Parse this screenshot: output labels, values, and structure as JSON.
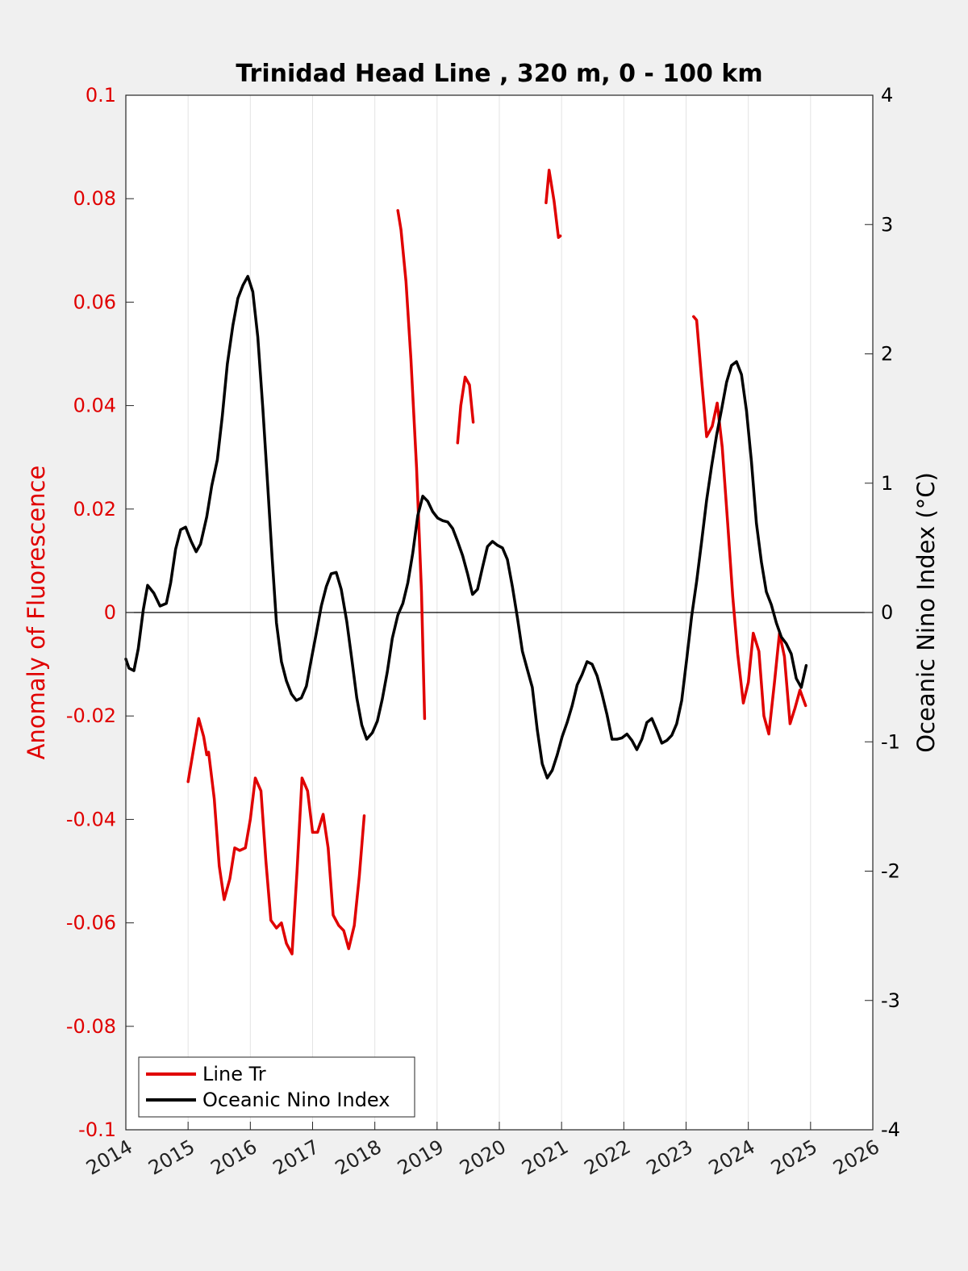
{
  "chart_data": {
    "type": "line",
    "title": "Trinidad Head Line , 320 m, 0 - 100 km",
    "xlabel": "",
    "xlim": [
      2014,
      2026
    ],
    "x_ticks": [
      "2014",
      "2015",
      "2016",
      "2017",
      "2018",
      "2019",
      "2020",
      "2021",
      "2022",
      "2023",
      "2024",
      "2025",
      "2026"
    ],
    "grid": "vertical",
    "legend_position": "bottom-left",
    "y_left": {
      "label": "Anomaly of Fluorescence",
      "ylim": [
        -0.1,
        0.1
      ],
      "ticks": [
        "0.1",
        "0.08",
        "0.06",
        "0.04",
        "0.02",
        "0",
        "-0.02",
        "-0.04",
        "-0.06",
        "-0.08",
        "-0.1"
      ],
      "color": "#e00000"
    },
    "y_right": {
      "label": "Oceanic Nino Index (°C)",
      "ylim": [
        -4,
        4
      ],
      "ticks": [
        "4",
        "3",
        "2",
        "1",
        "0",
        "-1",
        "-2",
        "-3",
        "-4"
      ],
      "color": "#000000"
    },
    "series": [
      {
        "name": "Line Tr",
        "axis": "left",
        "color": "#e00000",
        "segments": [
          [
            [
              2015.0,
              -0.0327
            ],
            [
              2015.08,
              -0.027
            ],
            [
              2015.17,
              -0.0205
            ],
            [
              2015.25,
              -0.024
            ],
            [
              2015.3,
              -0.0275
            ],
            [
              2015.33,
              -0.027
            ],
            [
              2015.42,
              -0.036
            ],
            [
              2015.5,
              -0.049
            ],
            [
              2015.58,
              -0.0555
            ],
            [
              2015.67,
              -0.0515
            ],
            [
              2015.75,
              -0.0455
            ],
            [
              2015.83,
              -0.046
            ],
            [
              2015.92,
              -0.0455
            ],
            [
              2016.0,
              -0.04
            ],
            [
              2016.08,
              -0.032
            ],
            [
              2016.17,
              -0.0345
            ],
            [
              2016.25,
              -0.048
            ],
            [
              2016.33,
              -0.0595
            ],
            [
              2016.42,
              -0.061
            ],
            [
              2016.5,
              -0.06
            ],
            [
              2016.58,
              -0.064
            ],
            [
              2016.67,
              -0.066
            ],
            [
              2016.75,
              -0.05
            ],
            [
              2016.83,
              -0.032
            ],
            [
              2016.92,
              -0.0345
            ],
            [
              2017.0,
              -0.0425
            ],
            [
              2017.08,
              -0.0425
            ],
            [
              2017.17,
              -0.039
            ],
            [
              2017.25,
              -0.0455
            ],
            [
              2017.33,
              -0.0585
            ],
            [
              2017.42,
              -0.0605
            ],
            [
              2017.5,
              -0.0615
            ],
            [
              2017.58,
              -0.065
            ],
            [
              2017.67,
              -0.0605
            ],
            [
              2017.75,
              -0.051
            ],
            [
              2017.83,
              -0.0393
            ]
          ],
          [
            [
              2018.37,
              0.0777
            ],
            [
              2018.42,
              0.074
            ],
            [
              2018.5,
              0.064
            ],
            [
              2018.58,
              0.049
            ],
            [
              2018.67,
              0.028
            ],
            [
              2018.75,
              0.004
            ],
            [
              2018.8,
              -0.0205
            ]
          ],
          [
            [
              2019.33,
              0.0328
            ],
            [
              2019.38,
              0.04
            ],
            [
              2019.45,
              0.0455
            ],
            [
              2019.52,
              0.044
            ],
            [
              2019.58,
              0.0368
            ]
          ],
          [
            [
              2020.75,
              0.0792
            ],
            [
              2020.8,
              0.0855
            ],
            [
              2020.88,
              0.0795
            ],
            [
              2020.95,
              0.0725
            ],
            [
              2020.98,
              0.0728
            ]
          ],
          [
            [
              2023.12,
              0.0572
            ],
            [
              2023.17,
              0.0565
            ],
            [
              2023.25,
              0.045
            ],
            [
              2023.33,
              0.034
            ],
            [
              2023.42,
              0.036
            ],
            [
              2023.5,
              0.0405
            ],
            [
              2023.58,
              0.032
            ],
            [
              2023.67,
              0.017
            ],
            [
              2023.75,
              0.003
            ],
            [
              2023.83,
              -0.008
            ],
            [
              2023.92,
              -0.0175
            ],
            [
              2024.0,
              -0.0135
            ],
            [
              2024.08,
              -0.004
            ],
            [
              2024.17,
              -0.0075
            ],
            [
              2024.25,
              -0.02
            ],
            [
              2024.33,
              -0.0235
            ],
            [
              2024.42,
              -0.0135
            ],
            [
              2024.5,
              -0.004
            ],
            [
              2024.58,
              -0.0085
            ],
            [
              2024.67,
              -0.0215
            ],
            [
              2024.75,
              -0.0185
            ],
            [
              2024.83,
              -0.015
            ],
            [
              2024.92,
              -0.018
            ]
          ]
        ]
      },
      {
        "name": "Oceanic Nino Index",
        "axis": "right",
        "color": "#000000",
        "segments": [
          [
            [
              2014.0,
              -0.36
            ],
            [
              2014.05,
              -0.43
            ],
            [
              2014.13,
              -0.45
            ],
            [
              2014.2,
              -0.28
            ],
            [
              2014.28,
              0.02
            ],
            [
              2014.35,
              0.21
            ],
            [
              2014.45,
              0.15
            ],
            [
              2014.55,
              0.05
            ],
            [
              2014.65,
              0.07
            ],
            [
              2014.72,
              0.23
            ],
            [
              2014.8,
              0.49
            ],
            [
              2014.88,
              0.64
            ],
            [
              2014.96,
              0.66
            ],
            [
              2015.05,
              0.55
            ],
            [
              2015.13,
              0.47
            ],
            [
              2015.2,
              0.53
            ],
            [
              2015.3,
              0.74
            ],
            [
              2015.38,
              0.98
            ],
            [
              2015.47,
              1.18
            ],
            [
              2015.55,
              1.52
            ],
            [
              2015.63,
              1.92
            ],
            [
              2015.72,
              2.22
            ],
            [
              2015.8,
              2.43
            ],
            [
              2015.88,
              2.53
            ],
            [
              2015.96,
              2.6
            ],
            [
              2016.04,
              2.48
            ],
            [
              2016.12,
              2.13
            ],
            [
              2016.2,
              1.58
            ],
            [
              2016.28,
              0.98
            ],
            [
              2016.35,
              0.43
            ],
            [
              2016.42,
              -0.08
            ],
            [
              2016.5,
              -0.38
            ],
            [
              2016.58,
              -0.53
            ],
            [
              2016.66,
              -0.63
            ],
            [
              2016.74,
              -0.68
            ],
            [
              2016.82,
              -0.66
            ],
            [
              2016.9,
              -0.57
            ],
            [
              2016.98,
              -0.36
            ],
            [
              2017.06,
              -0.16
            ],
            [
              2017.14,
              0.05
            ],
            [
              2017.22,
              0.2
            ],
            [
              2017.3,
              0.3
            ],
            [
              2017.38,
              0.31
            ],
            [
              2017.46,
              0.18
            ],
            [
              2017.55,
              -0.07
            ],
            [
              2017.63,
              -0.36
            ],
            [
              2017.71,
              -0.66
            ],
            [
              2017.79,
              -0.87
            ],
            [
              2017.87,
              -0.98
            ],
            [
              2017.96,
              -0.93
            ],
            [
              2018.04,
              -0.84
            ],
            [
              2018.12,
              -0.67
            ],
            [
              2018.2,
              -0.46
            ],
            [
              2018.28,
              -0.2
            ],
            [
              2018.37,
              -0.02
            ],
            [
              2018.45,
              0.07
            ],
            [
              2018.53,
              0.23
            ],
            [
              2018.61,
              0.46
            ],
            [
              2018.69,
              0.75
            ],
            [
              2018.77,
              0.9
            ],
            [
              2018.85,
              0.86
            ],
            [
              2018.93,
              0.78
            ],
            [
              2019.01,
              0.73
            ],
            [
              2019.09,
              0.71
            ],
            [
              2019.17,
              0.7
            ],
            [
              2019.25,
              0.65
            ],
            [
              2019.33,
              0.55
            ],
            [
              2019.41,
              0.44
            ],
            [
              2019.49,
              0.3
            ],
            [
              2019.57,
              0.14
            ],
            [
              2019.65,
              0.18
            ],
            [
              2019.73,
              0.35
            ],
            [
              2019.81,
              0.51
            ],
            [
              2019.89,
              0.55
            ],
            [
              2019.97,
              0.52
            ],
            [
              2020.05,
              0.5
            ],
            [
              2020.13,
              0.41
            ],
            [
              2020.21,
              0.2
            ],
            [
              2020.29,
              -0.04
            ],
            [
              2020.37,
              -0.3
            ],
            [
              2020.45,
              -0.44
            ],
            [
              2020.53,
              -0.58
            ],
            [
              2020.61,
              -0.91
            ],
            [
              2020.69,
              -1.17
            ],
            [
              2020.77,
              -1.28
            ],
            [
              2020.85,
              -1.22
            ],
            [
              2020.93,
              -1.1
            ],
            [
              2021.01,
              -0.96
            ],
            [
              2021.09,
              -0.85
            ],
            [
              2021.17,
              -0.72
            ],
            [
              2021.25,
              -0.56
            ],
            [
              2021.33,
              -0.48
            ],
            [
              2021.41,
              -0.38
            ],
            [
              2021.49,
              -0.4
            ],
            [
              2021.57,
              -0.49
            ],
            [
              2021.65,
              -0.63
            ],
            [
              2021.73,
              -0.79
            ],
            [
              2021.81,
              -0.98
            ],
            [
              2021.89,
              -0.98
            ],
            [
              2021.97,
              -0.97
            ],
            [
              2022.05,
              -0.94
            ],
            [
              2022.13,
              -0.99
            ],
            [
              2022.21,
              -1.06
            ],
            [
              2022.29,
              -0.98
            ],
            [
              2022.37,
              -0.85
            ],
            [
              2022.45,
              -0.82
            ],
            [
              2022.53,
              -0.91
            ],
            [
              2022.61,
              -1.01
            ],
            [
              2022.69,
              -0.99
            ],
            [
              2022.77,
              -0.95
            ],
            [
              2022.85,
              -0.86
            ],
            [
              2022.93,
              -0.68
            ],
            [
              2023.01,
              -0.36
            ],
            [
              2023.09,
              -0.03
            ],
            [
              2023.17,
              0.24
            ],
            [
              2023.25,
              0.55
            ],
            [
              2023.33,
              0.87
            ],
            [
              2023.41,
              1.13
            ],
            [
              2023.49,
              1.37
            ],
            [
              2023.57,
              1.57
            ],
            [
              2023.65,
              1.78
            ],
            [
              2023.73,
              1.91
            ],
            [
              2023.81,
              1.94
            ],
            [
              2023.89,
              1.84
            ],
            [
              2023.97,
              1.56
            ],
            [
              2024.05,
              1.17
            ],
            [
              2024.13,
              0.69
            ],
            [
              2024.21,
              0.39
            ],
            [
              2024.29,
              0.16
            ],
            [
              2024.37,
              0.06
            ],
            [
              2024.45,
              -0.08
            ],
            [
              2024.53,
              -0.19
            ],
            [
              2024.61,
              -0.24
            ],
            [
              2024.69,
              -0.32
            ],
            [
              2024.77,
              -0.51
            ],
            [
              2024.85,
              -0.58
            ],
            [
              2024.93,
              -0.41
            ]
          ]
        ]
      }
    ]
  }
}
